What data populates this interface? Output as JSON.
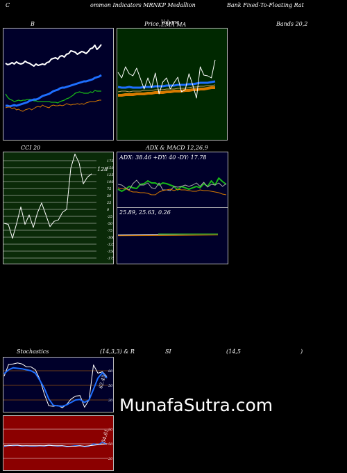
{
  "header": {
    "left": "C",
    "center": "ommon  Indicators MRNKP Medallion",
    "right": "Bank Fixed-To-Floating Rat"
  },
  "labels": {
    "b": "B",
    "price": "Price,",
    "volume_overlap": "Volume",
    "ema_ma": "EMA  MA",
    "bands": "Bands 20,2",
    "cci": "CCI 20",
    "adx_macd": "ADX  & MACD 12,26,9",
    "stoch": "Stochastics",
    "stoch_params": "(14,3,3) & R",
    "si": "SI",
    "rsi_params": "(14,5",
    "rsi_close": ")"
  },
  "watermark": "MunafaSutra.com",
  "colors": {
    "bg": "#000000",
    "navy": "#00002a",
    "darkgreen": "#002800",
    "cciGreen": "#0a2a08",
    "red": "#8b0000",
    "blue": "#1e6fff",
    "green": "#18b818",
    "orange": "#d77a00",
    "white": "#ffffff"
  },
  "chart_data": [
    {
      "type": "line",
      "id": "bollinger",
      "series": [
        {
          "values": [
            51,
            53,
            52,
            50,
            52,
            49,
            51,
            52,
            51,
            48,
            50,
            51,
            53,
            55,
            52,
            54,
            53,
            52,
            53,
            50,
            49,
            45,
            44,
            43,
            45,
            41,
            40,
            42,
            38,
            37,
            33,
            34,
            35,
            38,
            36,
            34,
            35,
            37,
            34,
            30,
            29,
            25,
            31,
            28,
            24
          ]
        },
        {
          "values": [
            95,
            100,
            103,
            104,
            106,
            105,
            104,
            105,
            104,
            104,
            103,
            103,
            103,
            105,
            105,
            106,
            106,
            106,
            106,
            106,
            106,
            107,
            107,
            107,
            108,
            106,
            105,
            104,
            102,
            101,
            99,
            97,
            94,
            93,
            92,
            93,
            94,
            94,
            94,
            92,
            93,
            90,
            91,
            91,
            91
          ]
        },
        {
          "values": [
            112,
            112,
            113,
            112,
            111,
            112,
            111,
            110,
            109,
            108,
            107,
            105,
            104,
            103,
            103,
            102,
            100,
            98,
            97,
            96,
            95,
            93,
            91,
            90,
            89,
            87,
            86,
            86,
            85,
            84,
            83,
            82,
            81,
            80,
            79,
            78,
            77,
            77,
            76,
            75,
            74,
            72,
            71,
            70,
            68
          ]
        },
        {
          "values": [
            115,
            114,
            114,
            116,
            115,
            118,
            117,
            119,
            120,
            118,
            117,
            116,
            118,
            116,
            114,
            113,
            114,
            111,
            113,
            114,
            115,
            112,
            111,
            112,
            112,
            111,
            112,
            111,
            109,
            110,
            111,
            110,
            110,
            109,
            110,
            109,
            110,
            108,
            107,
            106,
            106,
            106,
            105,
            104,
            104
          ]
        }
      ]
    },
    {
      "type": "line",
      "id": "price_ema_ma",
      "series": [
        {
          "values": [
            64,
            72,
            56,
            66,
            69,
            58,
            73,
            88,
            72,
            86,
            65,
            95,
            78,
            72,
            88,
            79,
            71,
            92,
            89,
            66,
            82,
            101,
            56,
            68,
            69,
            72,
            46
          ]
        },
        {
          "values": [
            85,
            86,
            86,
            85,
            86,
            86,
            86,
            85,
            85,
            85,
            84,
            84,
            84,
            83,
            83,
            83,
            82,
            82,
            82,
            81,
            81,
            80,
            79,
            79,
            79,
            78,
            77
          ]
        },
        {
          "values": [
            92,
            91,
            91,
            92,
            91,
            91,
            91,
            90,
            90,
            90,
            89,
            89,
            89,
            88,
            88,
            88,
            87,
            87,
            87,
            86,
            85,
            85,
            84,
            84,
            83,
            83,
            82
          ]
        },
        {
          "values": [
            97,
            97,
            96,
            96,
            96,
            95,
            95,
            95,
            94,
            94,
            93,
            93,
            93,
            92,
            92,
            91,
            91,
            91,
            90,
            90,
            89,
            89,
            88,
            88,
            87,
            86,
            86
          ]
        }
      ]
    },
    {
      "type": "line",
      "id": "cci",
      "yticks": [
        175,
        150,
        125,
        100,
        75,
        50,
        25,
        0,
        -25,
        -50,
        -75,
        -100,
        -125,
        -150,
        -175
      ],
      "last_label": "128",
      "series": [
        {
          "values": [
            -50,
            -54,
            -104,
            -50,
            9,
            -54,
            -20,
            -65,
            -12,
            23,
            -19,
            -62,
            -43,
            -38,
            -11,
            0,
            148,
            199,
            167,
            92,
            116,
            128
          ]
        }
      ]
    },
    {
      "type": "line",
      "id": "adx",
      "readout": "ADX: 38.46  +DY: 40  -DY: 17.78",
      "series": [
        {
          "values": [
            54,
            57,
            54,
            50,
            52,
            53,
            47,
            46,
            42,
            45,
            45,
            48,
            45,
            46,
            48,
            50,
            55,
            50,
            52,
            54,
            52,
            50,
            52,
            46,
            50,
            42,
            48,
            38,
            43,
            47
          ]
        },
        {
          "values": [
            47,
            48,
            52,
            55,
            46,
            41,
            48,
            48,
            45,
            52,
            53,
            45,
            55,
            55,
            56,
            50,
            51,
            50,
            48,
            50,
            48,
            45,
            50,
            44,
            51,
            47,
            48,
            45,
            50,
            46
          ]
        },
        {
          "values": [
            52,
            53,
            53,
            56,
            58,
            58,
            59,
            59,
            60,
            62,
            62,
            58,
            56,
            55,
            54,
            56,
            54,
            55,
            55,
            56,
            57,
            57,
            55,
            56,
            56,
            57,
            58,
            59,
            61,
            62
          ]
        }
      ]
    },
    {
      "type": "line",
      "id": "macd",
      "readout": "25.89,  25.63,  0.26"
    },
    {
      "type": "line",
      "id": "stochastics",
      "yticks": [
        80,
        50,
        20
      ],
      "last_label": "62.45",
      "series": [
        {
          "values": [
            69,
            93,
            94,
            96,
            94,
            88,
            88,
            82,
            62,
            32,
            8,
            7,
            9,
            4,
            11,
            22,
            28,
            29,
            5,
            20,
            92,
            75,
            78,
            68
          ]
        },
        {
          "values": [
            74,
            82,
            86,
            85,
            84,
            82,
            80,
            75,
            60,
            44,
            22,
            9,
            8,
            7,
            10,
            15,
            20,
            21,
            15,
            20,
            42,
            65,
            76,
            65
          ]
        }
      ]
    },
    {
      "type": "line",
      "id": "rsi",
      "yticks": [
        80,
        50,
        20
      ],
      "last_label": "54.61",
      "series": [
        {
          "values": [
            44,
            47,
            46,
            47,
            45,
            46,
            45,
            45,
            46,
            45,
            47,
            46,
            45,
            46,
            44,
            45,
            46,
            46,
            44,
            45,
            50,
            48,
            53,
            49
          ]
        },
        {
          "values": [
            46,
            46,
            47,
            47,
            46,
            46,
            46,
            46,
            46,
            46,
            47,
            46,
            46,
            46,
            45,
            45,
            45,
            46,
            45,
            46,
            47,
            48,
            49,
            50
          ]
        }
      ]
    }
  ]
}
